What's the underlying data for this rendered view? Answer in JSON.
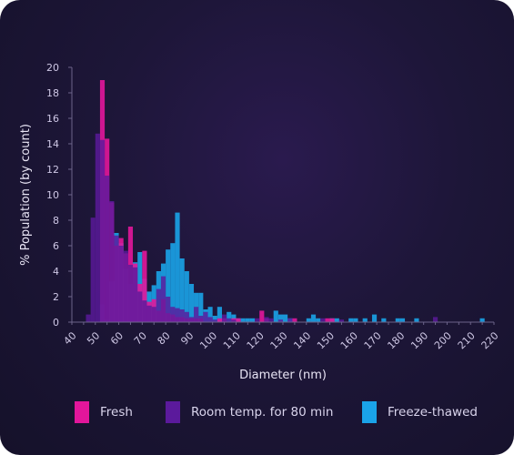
{
  "chart_data": {
    "type": "bar",
    "title": "",
    "xlabel": "Diameter (nm)",
    "ylabel": "% Population (by count)",
    "xlim": [
      40,
      220
    ],
    "ylim": [
      0,
      20
    ],
    "bin_width": 2,
    "x_ticks": [
      40,
      50,
      60,
      70,
      80,
      90,
      100,
      110,
      120,
      130,
      140,
      150,
      160,
      170,
      180,
      190,
      200,
      210,
      220
    ],
    "y_ticks": [
      0,
      2,
      4,
      6,
      8,
      10,
      12,
      14,
      16,
      18,
      20
    ],
    "legend_position": "bottom",
    "series": [
      {
        "name": "Freeze-thawed",
        "color": "#1aa3e8",
        "bins": [
          [
            53,
            1.4
          ],
          [
            55,
            0.2
          ],
          [
            57,
            3.2
          ],
          [
            59,
            7.0
          ],
          [
            61,
            6.2
          ],
          [
            63,
            4.2
          ],
          [
            65,
            3.0
          ],
          [
            67,
            4.7
          ],
          [
            69,
            5.5
          ],
          [
            71,
            3.4
          ],
          [
            73,
            2.4
          ],
          [
            75,
            2.9
          ],
          [
            77,
            4.0
          ],
          [
            79,
            4.6
          ],
          [
            81,
            5.7
          ],
          [
            83,
            6.2
          ],
          [
            85,
            8.6
          ],
          [
            87,
            5.0
          ],
          [
            89,
            4.0
          ],
          [
            91,
            3.0
          ],
          [
            93,
            2.3
          ],
          [
            95,
            2.3
          ],
          [
            97,
            1.0
          ],
          [
            99,
            1.2
          ],
          [
            101,
            0.5
          ],
          [
            103,
            1.2
          ],
          [
            105,
            0.3
          ],
          [
            107,
            0.8
          ],
          [
            109,
            0.6
          ],
          [
            111,
            0.3
          ],
          [
            113,
            0.3
          ],
          [
            115,
            0.3
          ],
          [
            117,
            0.3
          ],
          [
            127,
            0.9
          ],
          [
            129,
            0.6
          ],
          [
            131,
            0.6
          ],
          [
            133,
            0.3
          ],
          [
            141,
            0.3
          ],
          [
            143,
            0.6
          ],
          [
            145,
            0.3
          ],
          [
            151,
            0.3
          ],
          [
            153,
            0.3
          ],
          [
            159,
            0.3
          ],
          [
            161,
            0.3
          ],
          [
            165,
            0.3
          ],
          [
            169,
            0.6
          ],
          [
            173,
            0.3
          ],
          [
            179,
            0.3
          ],
          [
            181,
            0.3
          ],
          [
            187,
            0.3
          ],
          [
            215,
            0.3
          ]
        ]
      },
      {
        "name": "Fresh",
        "color": "#e2169b",
        "bins": [
          [
            53,
            19.0
          ],
          [
            55,
            14.4
          ],
          [
            57,
            9.4
          ],
          [
            59,
            6.0
          ],
          [
            61,
            6.6
          ],
          [
            63,
            5.4
          ],
          [
            65,
            7.5
          ],
          [
            67,
            4.6
          ],
          [
            69,
            3.0
          ],
          [
            71,
            5.6
          ],
          [
            73,
            1.6
          ],
          [
            75,
            1.8
          ],
          [
            77,
            0.9
          ],
          [
            79,
            1.8
          ],
          [
            81,
            0.7
          ],
          [
            83,
            0.6
          ],
          [
            85,
            0.4
          ],
          [
            87,
            0.4
          ],
          [
            89,
            0.3
          ],
          [
            91,
            0.3
          ],
          [
            93,
            0.3
          ],
          [
            95,
            0.3
          ],
          [
            103,
            0.3
          ],
          [
            105,
            0.3
          ],
          [
            109,
            0.3
          ],
          [
            111,
            0.3
          ],
          [
            121,
            0.9
          ],
          [
            123,
            0.3
          ],
          [
            135,
            0.3
          ],
          [
            149,
            0.3
          ],
          [
            151,
            0.3
          ]
        ]
      },
      {
        "name": "Room temp. for 80 min",
        "color": "#5b1a9c",
        "bins": [
          [
            47,
            0.6
          ],
          [
            49,
            8.2
          ],
          [
            51,
            14.8
          ],
          [
            53,
            14.3
          ],
          [
            55,
            11.5
          ],
          [
            57,
            9.5
          ],
          [
            59,
            6.8
          ],
          [
            61,
            6.0
          ],
          [
            63,
            5.6
          ],
          [
            65,
            4.5
          ],
          [
            67,
            4.3
          ],
          [
            69,
            2.4
          ],
          [
            71,
            1.7
          ],
          [
            73,
            1.3
          ],
          [
            75,
            1.2
          ],
          [
            77,
            2.6
          ],
          [
            79,
            3.6
          ],
          [
            81,
            2.0
          ],
          [
            83,
            1.2
          ],
          [
            85,
            1.1
          ],
          [
            87,
            1.0
          ],
          [
            89,
            0.8
          ],
          [
            91,
            0.4
          ],
          [
            93,
            1.2
          ],
          [
            95,
            0.5
          ],
          [
            97,
            0.8
          ],
          [
            99,
            0.4
          ],
          [
            101,
            0.2
          ],
          [
            105,
            0.6
          ],
          [
            107,
            0.3
          ],
          [
            109,
            0.2
          ],
          [
            119,
            0.3
          ],
          [
            123,
            0.4
          ],
          [
            125,
            0.3
          ],
          [
            129,
            0.2
          ],
          [
            133,
            0.3
          ],
          [
            147,
            0.3
          ],
          [
            155,
            0.2
          ],
          [
            195,
            0.4
          ]
        ]
      }
    ]
  },
  "legend": {
    "items": [
      {
        "label": "Fresh",
        "color": "#e2169b"
      },
      {
        "label": "Room temp. for 80 min",
        "color": "#5b1a9c"
      },
      {
        "label": "Freeze-thawed",
        "color": "#1aa3e8"
      }
    ]
  }
}
